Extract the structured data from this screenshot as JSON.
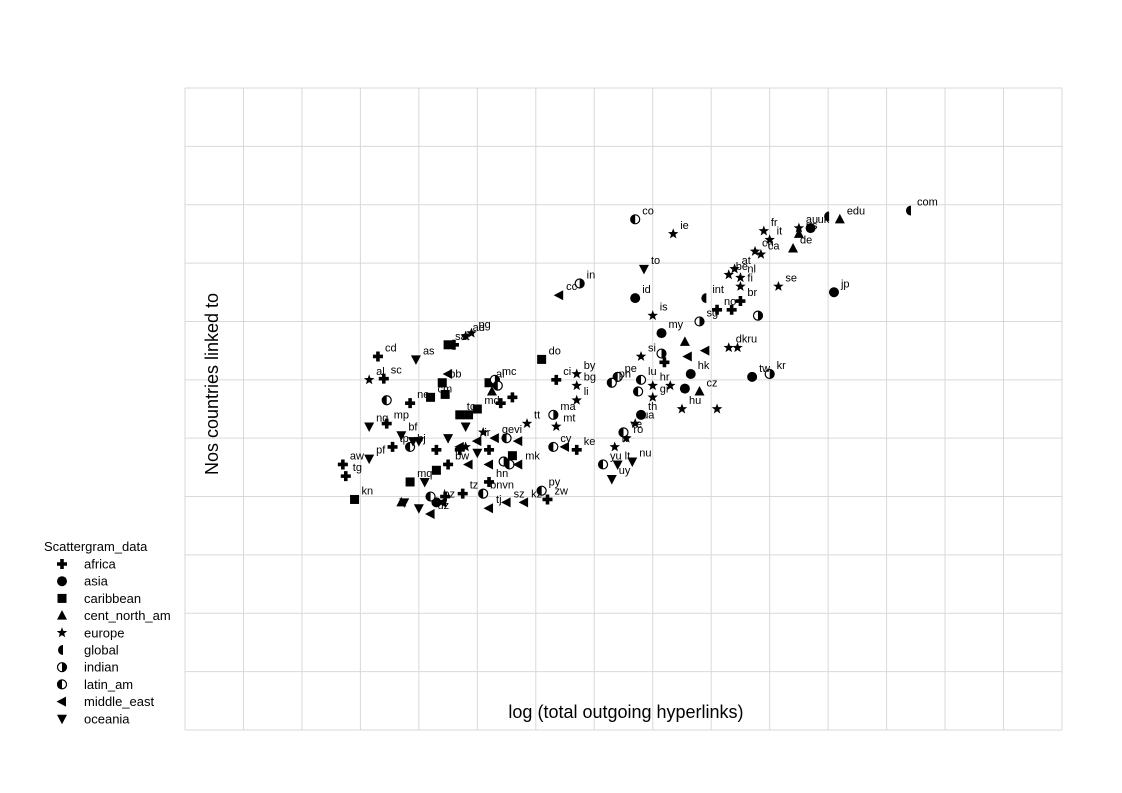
{
  "chart_data": {
    "type": "scatter",
    "title": "",
    "xlabel": "log (total outgoing hyperlinks)",
    "ylabel": "Nos countries linked to",
    "xlim": [
      0,
      15
    ],
    "ylim": [
      0,
      11
    ],
    "grid": true,
    "legend": {
      "title": "Scattergram_data",
      "placement": "bottom-left",
      "entries": [
        {
          "name": "africa",
          "marker": "plus"
        },
        {
          "name": "asia",
          "marker": "circle"
        },
        {
          "name": "caribbean",
          "marker": "square"
        },
        {
          "name": "cent_north_am",
          "marker": "triangle-up"
        },
        {
          "name": "europe",
          "marker": "star"
        },
        {
          "name": "global",
          "marker": "half-left"
        },
        {
          "name": "indian",
          "marker": "half-right"
        },
        {
          "name": "latin_am",
          "marker": "half-right-outline"
        },
        {
          "name": "middle_east",
          "marker": "triangle-left"
        },
        {
          "name": "oceania",
          "marker": "triangle-down"
        }
      ]
    },
    "series": [
      {
        "name": "africa",
        "points": [
          {
            "label": "cd",
            "x": 3.3,
            "y": 6.4
          },
          {
            "label": "st",
            "x": 4.6,
            "y": 6.6
          },
          {
            "label": "sc",
            "x": 3.4,
            "y": 6.02
          },
          {
            "label": "ne",
            "x": 3.85,
            "y": 5.6
          },
          {
            "label": "mp",
            "x": 3.45,
            "y": 5.25
          },
          {
            "label": "tp",
            "x": 3.55,
            "y": 4.85
          },
          {
            "label": "aw",
            "x": 2.7,
            "y": 4.55
          },
          {
            "label": "tg",
            "x": 2.75,
            "y": 4.35
          },
          {
            "label": "bw",
            "x": 4.5,
            "y": 4.55
          },
          {
            "label": "tz",
            "x": 4.75,
            "y": 4.05
          },
          {
            "label": "",
            "x": 4.45,
            "y": 4.0
          },
          {
            "label": "",
            "x": 4.3,
            "y": 4.8
          },
          {
            "label": "",
            "x": 4.7,
            "y": 4.8
          },
          {
            "label": "",
            "x": 5.2,
            "y": 4.8
          },
          {
            "label": "hn",
            "x": 5.2,
            "y": 4.25
          },
          {
            "label": "",
            "x": 5.4,
            "y": 5.6
          },
          {
            "label": "",
            "x": 5.6,
            "y": 5.7
          },
          {
            "label": "ci",
            "x": 6.35,
            "y": 6.0
          },
          {
            "label": "ke",
            "x": 6.7,
            "y": 4.8
          },
          {
            "label": "zw",
            "x": 6.2,
            "y": 3.95
          },
          {
            "label": "",
            "x": 8.2,
            "y": 6.3
          },
          {
            "label": "no",
            "x": 9.1,
            "y": 7.2
          },
          {
            "label": "",
            "x": 9.35,
            "y": 7.2
          },
          {
            "label": "br",
            "x": 9.5,
            "y": 7.35
          }
        ]
      },
      {
        "name": "asia",
        "points": [
          {
            "label": "bz",
            "x": 4.3,
            "y": 3.9
          },
          {
            "label": "id",
            "x": 7.7,
            "y": 7.4
          },
          {
            "label": "my",
            "x": 8.15,
            "y": 6.8
          },
          {
            "label": "hk",
            "x": 8.65,
            "y": 6.1
          },
          {
            "label": "",
            "x": 8.55,
            "y": 5.85
          },
          {
            "label": "th",
            "x": 7.8,
            "y": 5.4
          },
          {
            "label": "tw",
            "x": 9.7,
            "y": 6.05
          },
          {
            "label": "uk",
            "x": 10.7,
            "y": 8.6
          },
          {
            "label": "jp",
            "x": 11.1,
            "y": 7.5
          }
        ]
      },
      {
        "name": "caribbean",
        "points": [
          {
            "label": "sa",
            "x": 4.5,
            "y": 6.6
          },
          {
            "label": "bb",
            "x": 4.4,
            "y": 5.95
          },
          {
            "label": "cm",
            "x": 4.2,
            "y": 5.7
          },
          {
            "label": "",
            "x": 4.45,
            "y": 5.75
          },
          {
            "label": "tc",
            "x": 4.7,
            "y": 5.4
          },
          {
            "label": "",
            "x": 4.85,
            "y": 5.4
          },
          {
            "label": "ai",
            "x": 5.2,
            "y": 5.95
          },
          {
            "label": "md",
            "x": 5.0,
            "y": 5.5
          },
          {
            "label": "do",
            "x": 6.1,
            "y": 6.35
          },
          {
            "label": "mq",
            "x": 3.85,
            "y": 4.25
          },
          {
            "label": "kn",
            "x": 2.9,
            "y": 3.95
          },
          {
            "label": "",
            "x": 4.3,
            "y": 4.45
          },
          {
            "label": "",
            "x": 5.6,
            "y": 4.7
          }
        ]
      },
      {
        "name": "cent_north_am",
        "points": [
          {
            "label": "",
            "x": 3.7,
            "y": 3.9
          },
          {
            "label": "",
            "x": 5.25,
            "y": 5.8
          },
          {
            "label": "",
            "x": 8.55,
            "y": 6.65
          },
          {
            "label": "cz",
            "x": 8.8,
            "y": 5.8
          },
          {
            "label": "de",
            "x": 10.4,
            "y": 8.25
          },
          {
            "label": "us",
            "x": 10.5,
            "y": 8.5
          },
          {
            "label": "edu",
            "x": 11.2,
            "y": 8.75
          }
        ]
      },
      {
        "name": "europe",
        "points": [
          {
            "label": "al",
            "x": 3.15,
            "y": 6.0
          },
          {
            "label": "ad",
            "x": 4.8,
            "y": 6.75
          },
          {
            "label": "pg",
            "x": 4.9,
            "y": 6.8
          },
          {
            "label": "by",
            "x": 6.7,
            "y": 6.1
          },
          {
            "label": "bg",
            "x": 6.7,
            "y": 5.9
          },
          {
            "label": "li",
            "x": 6.7,
            "y": 5.65
          },
          {
            "label": "mt",
            "x": 6.35,
            "y": 5.2
          },
          {
            "label": "tt",
            "x": 5.85,
            "y": 5.25
          },
          {
            "label": "",
            "x": 5.1,
            "y": 5.1
          },
          {
            "label": "",
            "x": 4.8,
            "y": 4.85
          },
          {
            "label": "ie",
            "x": 8.35,
            "y": 8.5
          },
          {
            "label": "is",
            "x": 8.0,
            "y": 7.1
          },
          {
            "label": "si",
            "x": 7.8,
            "y": 6.4
          },
          {
            "label": "hr",
            "x": 8.0,
            "y": 5.9
          },
          {
            "label": "gr",
            "x": 8.0,
            "y": 5.7
          },
          {
            "label": "",
            "x": 8.3,
            "y": 5.9
          },
          {
            "label": "hu",
            "x": 8.5,
            "y": 5.5
          },
          {
            "label": "",
            "x": 9.1,
            "y": 5.5
          },
          {
            "label": "dkru",
            "x": 9.3,
            "y": 6.55
          },
          {
            "label": "",
            "x": 9.45,
            "y": 6.55
          },
          {
            "label": "ua",
            "x": 7.7,
            "y": 5.25
          },
          {
            "label": "ro",
            "x": 7.55,
            "y": 5.0
          },
          {
            "label": "lv",
            "x": 7.35,
            "y": 4.85
          },
          {
            "label": "fr",
            "x": 9.9,
            "y": 8.55
          },
          {
            "label": "it",
            "x": 10.0,
            "y": 8.4
          },
          {
            "label": "ch",
            "x": 9.75,
            "y": 8.2
          },
          {
            "label": "ca",
            "x": 9.85,
            "y": 8.15
          },
          {
            "label": "at",
            "x": 9.4,
            "y": 7.9
          },
          {
            "label": "be",
            "x": 9.3,
            "y": 7.8
          },
          {
            "label": "nl",
            "x": 9.5,
            "y": 7.75
          },
          {
            "label": "fi",
            "x": 9.5,
            "y": 7.6
          },
          {
            "label": "se",
            "x": 10.15,
            "y": 7.6
          },
          {
            "label": "au",
            "x": 10.5,
            "y": 8.6
          }
        ]
      },
      {
        "name": "global",
        "points": [
          {
            "label": "int",
            "x": 8.9,
            "y": 7.4
          },
          {
            "label": "",
            "x": 11.0,
            "y": 8.8
          },
          {
            "label": "com",
            "x": 12.4,
            "y": 8.9
          }
        ]
      },
      {
        "name": "indian",
        "points": [
          {
            "label": "in",
            "x": 6.75,
            "y": 7.65
          },
          {
            "label": "",
            "x": 8.15,
            "y": 6.45
          },
          {
            "label": "mc",
            "x": 5.3,
            "y": 6.0
          },
          {
            "label": "ma",
            "x": 6.3,
            "y": 5.4
          },
          {
            "label": "",
            "x": 5.45,
            "y": 4.6
          },
          {
            "label": "sg",
            "x": 8.8,
            "y": 7.0
          },
          {
            "label": "",
            "x": 9.8,
            "y": 7.1
          },
          {
            "label": "kr",
            "x": 10.0,
            "y": 6.1
          }
        ]
      },
      {
        "name": "latin_am",
        "points": [
          {
            "label": "co",
            "x": 7.7,
            "y": 8.75
          },
          {
            "label": "pe",
            "x": 7.4,
            "y": 6.05
          },
          {
            "label": "ph",
            "x": 7.3,
            "y": 5.95
          },
          {
            "label": "lu",
            "x": 7.8,
            "y": 6.0
          },
          {
            "label": "",
            "x": 7.75,
            "y": 5.8
          },
          {
            "label": "ve",
            "x": 7.5,
            "y": 5.1
          },
          {
            "label": "yu",
            "x": 7.15,
            "y": 4.55
          },
          {
            "label": "",
            "x": 3.45,
            "y": 5.65
          },
          {
            "label": "bj",
            "x": 3.85,
            "y": 4.85
          },
          {
            "label": "",
            "x": 4.2,
            "y": 4.0
          },
          {
            "label": "",
            "x": 5.5,
            "y": 5.0
          },
          {
            "label": "",
            "x": 5.55,
            "y": 4.55
          },
          {
            "label": "cy",
            "x": 6.3,
            "y": 4.85
          },
          {
            "label": "py",
            "x": 6.1,
            "y": 4.1
          },
          {
            "label": "bnvn",
            "x": 5.1,
            "y": 4.05
          },
          {
            "label": "",
            "x": 5.35,
            "y": 5.9
          }
        ]
      },
      {
        "name": "middle_east",
        "points": [
          {
            "label": "cc",
            "x": 6.4,
            "y": 7.45
          },
          {
            "label": "",
            "x": 4.5,
            "y": 6.1
          },
          {
            "label": "",
            "x": 4.7,
            "y": 4.85
          },
          {
            "label": "ir",
            "x": 5.0,
            "y": 4.95
          },
          {
            "label": "",
            "x": 4.85,
            "y": 4.55
          },
          {
            "label": "",
            "x": 5.2,
            "y": 4.55
          },
          {
            "label": "gevi",
            "x": 5.3,
            "y": 5.0
          },
          {
            "label": "",
            "x": 5.7,
            "y": 4.95
          },
          {
            "label": "mk",
            "x": 5.7,
            "y": 4.55
          },
          {
            "label": "",
            "x": 6.5,
            "y": 4.85
          },
          {
            "label": "tj",
            "x": 5.2,
            "y": 3.8
          },
          {
            "label": "sz",
            "x": 5.5,
            "y": 3.9
          },
          {
            "label": "kz",
            "x": 5.8,
            "y": 3.9
          },
          {
            "label": "",
            "x": 4.4,
            "y": 3.9
          },
          {
            "label": "uz",
            "x": 4.2,
            "y": 3.7
          },
          {
            "label": "",
            "x": 8.6,
            "y": 6.4
          },
          {
            "label": "",
            "x": 8.9,
            "y": 6.5
          }
        ]
      },
      {
        "name": "oceania",
        "points": [
          {
            "label": "as",
            "x": 3.95,
            "y": 6.35
          },
          {
            "label": "ng",
            "x": 3.15,
            "y": 5.2
          },
          {
            "label": "pf",
            "x": 3.15,
            "y": 4.65
          },
          {
            "label": "bf",
            "x": 3.7,
            "y": 5.05
          },
          {
            "label": "",
            "x": 3.9,
            "y": 4.95
          },
          {
            "label": "",
            "x": 4.0,
            "y": 4.95
          },
          {
            "label": "",
            "x": 4.5,
            "y": 5.0
          },
          {
            "label": "",
            "x": 4.8,
            "y": 5.2
          },
          {
            "label": "",
            "x": 5.0,
            "y": 4.75
          },
          {
            "label": "to",
            "x": 7.85,
            "y": 7.9
          },
          {
            "label": "nu",
            "x": 7.65,
            "y": 4.6
          },
          {
            "label": "lt",
            "x": 7.4,
            "y": 4.55
          },
          {
            "label": "uy",
            "x": 7.3,
            "y": 4.3
          },
          {
            "label": "",
            "x": 3.75,
            "y": 3.9
          },
          {
            "label": "",
            "x": 4.0,
            "y": 3.8
          },
          {
            "label": "",
            "x": 4.1,
            "y": 4.25
          }
        ]
      }
    ]
  }
}
